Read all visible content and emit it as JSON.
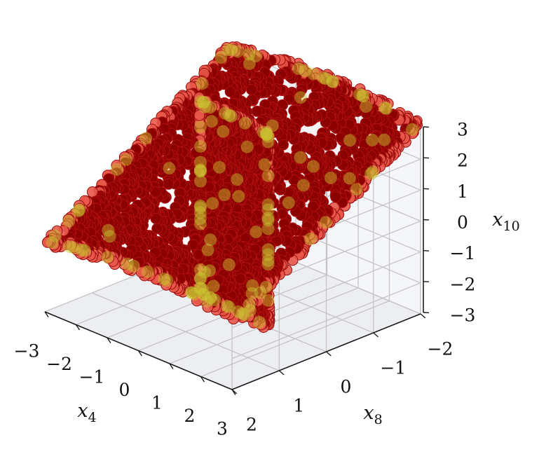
{
  "chart_data": {
    "type": "scatter",
    "projection": "3d",
    "title": "",
    "axes": {
      "x": {
        "label": "x",
        "label_sub": "4",
        "range": [
          -3,
          3
        ],
        "ticks": [
          -3,
          -2,
          -1,
          0,
          1,
          2,
          3
        ],
        "tick_labels": [
          "−3",
          "−2",
          "−1",
          "0",
          "1",
          "2",
          "3"
        ]
      },
      "y": {
        "label": "x",
        "label_sub": "8",
        "range": [
          -2,
          2
        ],
        "ticks": [
          -2,
          -1,
          0,
          1,
          2
        ],
        "tick_labels": [
          "−2",
          "−1",
          "0",
          "1",
          "2"
        ]
      },
      "z": {
        "label": "x",
        "label_sub": "10",
        "range": [
          -3,
          3
        ],
        "ticks": [
          -3,
          -2,
          -1,
          0,
          1,
          2,
          3
        ],
        "tick_labels": [
          "−3",
          "−2",
          "−1",
          "0",
          "1",
          "2",
          "3"
        ]
      }
    },
    "grid": true,
    "legend": "none",
    "series": [
      {
        "role": "interior",
        "color": "#8b0000",
        "edge_color": "#b01010",
        "opacity": 1.0,
        "shape": "two intersecting sheets: sheet A spans x4 -3..3, x8 -1.9..1.9, x10 -0.8..3.1 ; sheet B spans x4 -1.3..1.1 at x8 ≈ -0.1, x10 -3..3.2"
      },
      {
        "role": "boundary",
        "color": "#e8584a",
        "edge_color": "#9a0d0d",
        "opacity": 0.9
      },
      {
        "role": "highlight",
        "color": "#c9c630",
        "opacity": 0.45
      }
    ]
  }
}
